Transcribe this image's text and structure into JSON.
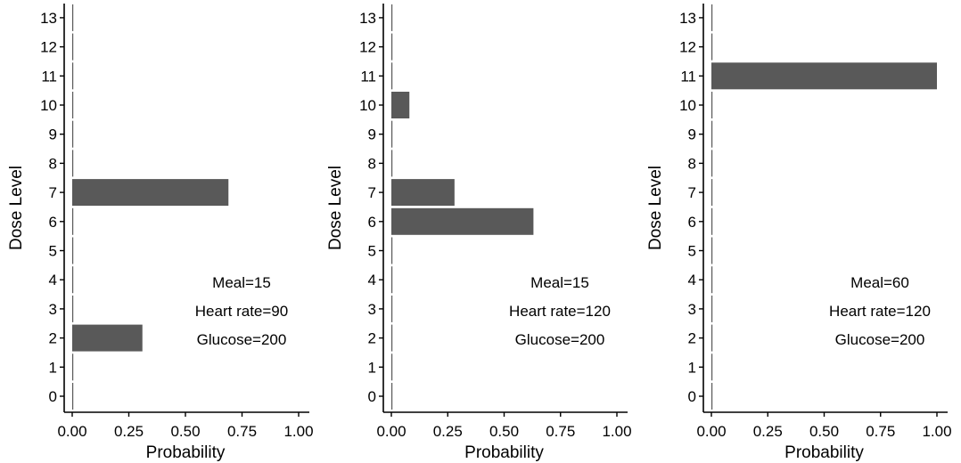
{
  "chart_data": [
    {
      "type": "bar",
      "orientation": "horizontal",
      "xlabel": "Probability",
      "ylabel": "Dose Level",
      "xlim": [
        0,
        1
      ],
      "x_ticks": [
        "0.00",
        "0.25",
        "0.50",
        "0.75",
        "1.00"
      ],
      "categories": [
        "0",
        "1",
        "2",
        "3",
        "4",
        "5",
        "6",
        "7",
        "8",
        "9",
        "10",
        "11",
        "12",
        "13"
      ],
      "values": [
        0,
        0,
        0.31,
        0,
        0,
        0,
        0,
        0.69,
        0,
        0,
        0,
        0,
        0,
        0
      ],
      "annotations": [
        "Meal=15",
        "Heart rate=90",
        "Glucose=200"
      ],
      "bar_color": "#595959",
      "grid": false
    },
    {
      "type": "bar",
      "orientation": "horizontal",
      "xlabel": "Probability",
      "ylabel": "Dose Level",
      "xlim": [
        0,
        1
      ],
      "x_ticks": [
        "0.00",
        "0.25",
        "0.50",
        "0.75",
        "1.00"
      ],
      "categories": [
        "0",
        "1",
        "2",
        "3",
        "4",
        "5",
        "6",
        "7",
        "8",
        "9",
        "10",
        "11",
        "12",
        "13"
      ],
      "values": [
        0,
        0,
        0,
        0,
        0,
        0,
        0.63,
        0.28,
        0,
        0,
        0.08,
        0,
        0,
        0
      ],
      "annotations": [
        "Meal=15",
        "Heart rate=120",
        "Glucose=200"
      ],
      "bar_color": "#595959",
      "grid": false
    },
    {
      "type": "bar",
      "orientation": "horizontal",
      "xlabel": "Probability",
      "ylabel": "Dose Level",
      "xlim": [
        0,
        1
      ],
      "x_ticks": [
        "0.00",
        "0.25",
        "0.50",
        "0.75",
        "1.00"
      ],
      "categories": [
        "0",
        "1",
        "2",
        "3",
        "4",
        "5",
        "6",
        "7",
        "8",
        "9",
        "10",
        "11",
        "12",
        "13"
      ],
      "values": [
        0,
        0,
        0,
        0,
        0,
        0,
        0,
        0,
        0,
        0,
        0,
        1.0,
        0,
        0
      ],
      "annotations": [
        "Meal=60",
        "Heart rate=120",
        "Glucose=200"
      ],
      "bar_color": "#595959",
      "grid": false
    }
  ]
}
